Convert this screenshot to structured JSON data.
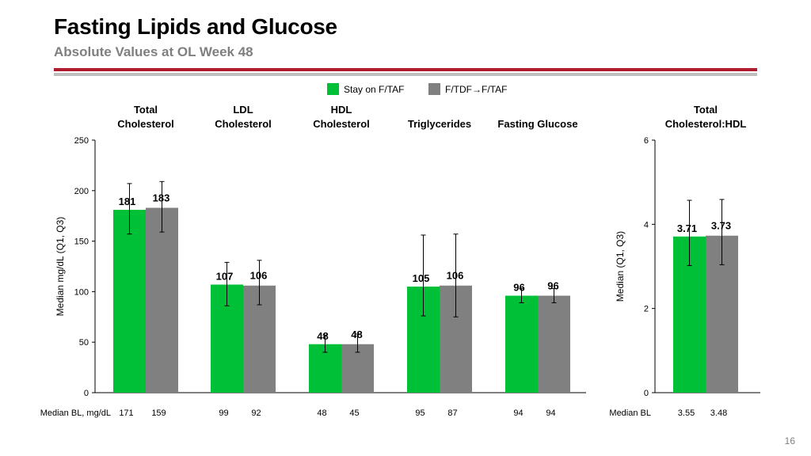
{
  "slide": {
    "title": "Fasting Lipids and Glucose",
    "subtitle": "Absolute Values at OL Week 48",
    "page_number": "16"
  },
  "colors": {
    "stay": "#00C037",
    "switch": "#808080",
    "rule_red": "#B01C2E",
    "rule_gray": "#BFBFBF"
  },
  "legend": [
    {
      "name": "Stay on F/TAF",
      "color_key": "stay"
    },
    {
      "name": "F/TDF→F/TAF",
      "color_key": "switch"
    }
  ],
  "chart_data": [
    {
      "type": "bar",
      "ylabel": "Median mg/dL (Q1, Q3)",
      "ylim": [
        0,
        250
      ],
      "yticks": [
        0,
        50,
        100,
        150,
        200,
        250
      ],
      "categories": [
        [
          "Total",
          "Cholesterol"
        ],
        [
          "LDL",
          "Cholesterol"
        ],
        [
          "HDL",
          "Cholesterol"
        ],
        [
          "Triglycerides"
        ],
        [
          "Fasting Glucose"
        ]
      ],
      "series": [
        {
          "name": "Stay on F/TAF",
          "values": [
            181,
            107,
            48,
            105,
            96
          ],
          "q1": [
            157,
            86,
            40,
            76,
            89
          ],
          "q3": [
            207,
            129,
            57,
            156,
            103
          ]
        },
        {
          "name": "F/TDF→F/TAF",
          "values": [
            183,
            106,
            48,
            106,
            96
          ],
          "q1": [
            159,
            87,
            40,
            75,
            89
          ],
          "q3": [
            209,
            131,
            58,
            157,
            103
          ]
        }
      ],
      "baseline_label": "Median BL, mg/dL",
      "baseline": [
        [
          171,
          159
        ],
        [
          99,
          92
        ],
        [
          48,
          45
        ],
        [
          95,
          87
        ],
        [
          94,
          94
        ]
      ]
    },
    {
      "type": "bar",
      "ylabel": "Median (Q1, Q3)",
      "ylim": [
        0,
        6
      ],
      "yticks": [
        0,
        2,
        4,
        6
      ],
      "categories": [
        [
          "Total",
          "Cholesterol:HDL"
        ]
      ],
      "series": [
        {
          "name": "Stay on F/TAF",
          "values": [
            3.71
          ],
          "q1": [
            3.02
          ],
          "q3": [
            4.57
          ]
        },
        {
          "name": "F/TDF→F/TAF",
          "values": [
            3.73
          ],
          "q1": [
            3.04
          ],
          "q3": [
            4.59
          ]
        }
      ],
      "baseline_label": "Median BL",
      "baseline": [
        [
          3.55,
          3.48
        ]
      ]
    }
  ]
}
